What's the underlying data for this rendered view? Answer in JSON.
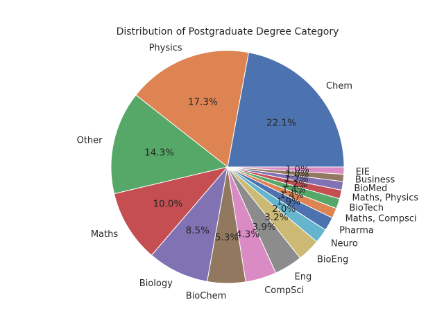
{
  "chart_data": {
    "type": "pie",
    "title": "Distribution of Postgraduate Degree Category",
    "start_angle_deg": 0,
    "direction": "counterclockwise",
    "slices": [
      {
        "label": "Chem",
        "percent": 22.1,
        "display": "22.1%",
        "color": "#4c72b0"
      },
      {
        "label": "Physics",
        "percent": 17.3,
        "display": "17.3%",
        "color": "#dd8452"
      },
      {
        "label": "Other",
        "percent": 14.3,
        "display": "14.3%",
        "color": "#55a868"
      },
      {
        "label": "Maths",
        "percent": 10.0,
        "display": "10.0%",
        "color": "#c44e52"
      },
      {
        "label": "Biology",
        "percent": 8.5,
        "display": "8.5%",
        "color": "#8172b3"
      },
      {
        "label": "BioChem",
        "percent": 5.3,
        "display": "5.3%",
        "color": "#937860"
      },
      {
        "label": "CompSci",
        "percent": 4.3,
        "display": "4.3%",
        "color": "#da8bc3"
      },
      {
        "label": "Eng",
        "percent": 3.9,
        "display": "3.9%",
        "color": "#8c8c8c"
      },
      {
        "label": "BioEng",
        "percent": 3.2,
        "display": "3.2%",
        "color": "#ccb974"
      },
      {
        "label": "Neuro",
        "percent": 2.0,
        "display": "2.0%",
        "color": "#64b5cd"
      },
      {
        "label": "Pharma",
        "percent": 1.9,
        "display": "1.9%",
        "color": "#4c72b0"
      },
      {
        "label": "Maths, Compsci",
        "percent": 1.4,
        "display": "1.4%",
        "color": "#dd8452"
      },
      {
        "label": "BioTech",
        "percent": 1.4,
        "display": "1.4%",
        "color": "#55a868"
      },
      {
        "label": "Maths, Physics",
        "percent": 1.2,
        "display": "1.2%",
        "color": "#c44e52"
      },
      {
        "label": "BioMed",
        "percent": 1.2,
        "display": "1.2%",
        "color": "#8172b3"
      },
      {
        "label": "Business",
        "percent": 1.0,
        "display": "1.0%",
        "color": "#937860"
      },
      {
        "label": "EIE",
        "percent": 1.0,
        "display": "1.0%",
        "color": "#da8bc3"
      }
    ]
  }
}
